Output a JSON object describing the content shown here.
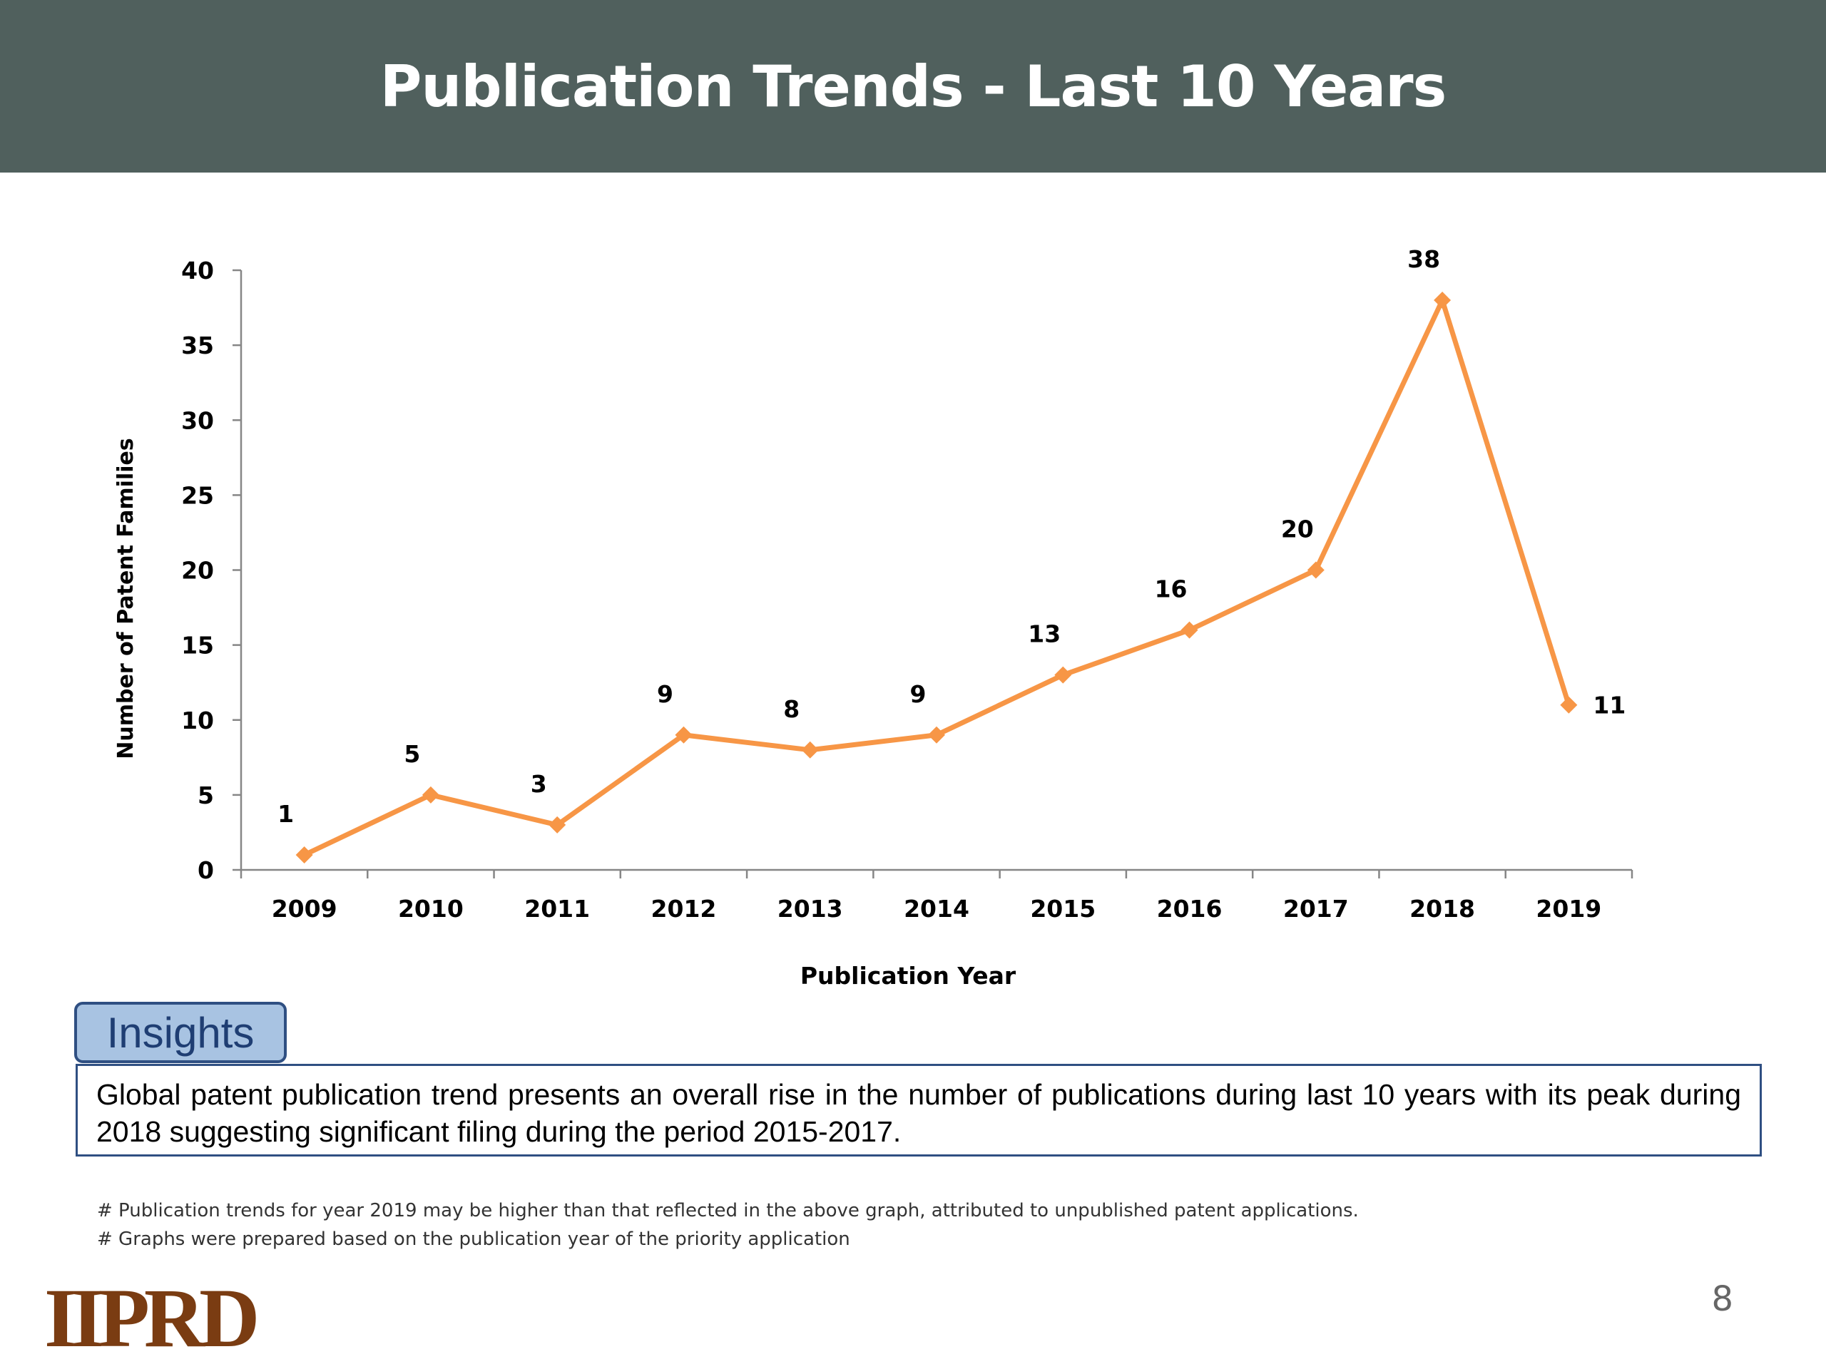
{
  "slide": {
    "title": "Publication Trends - Last 10 Years",
    "page_number": "8"
  },
  "chart_data": {
    "type": "line",
    "x": [
      "2009",
      "2010",
      "2011",
      "2012",
      "2013",
      "2014",
      "2015",
      "2016",
      "2017",
      "2018",
      "2019"
    ],
    "series": [
      {
        "values": [
          1,
          5,
          3,
          9,
          8,
          9,
          13,
          16,
          20,
          38,
          11
        ]
      }
    ],
    "xlabel": "Publication Year",
    "ylabel": "Number of Patent Families",
    "ylim": [
      0,
      40
    ],
    "yticks": [
      0,
      5,
      10,
      15,
      20,
      25,
      30,
      35,
      40
    ],
    "data_labels": true,
    "marker": "diamond",
    "grid": false,
    "line_color": "#f79646"
  },
  "insights": {
    "label": "Insights",
    "text": "Global patent publication trend presents an overall rise in the number of publications during last 10 years with its peak during 2018 suggesting significant filing during the period 2015-2017."
  },
  "footnotes": [
    "# Publication trends for year 2019 may be higher than that reflected in the above graph, attributed to unpublished patent applications.",
    "# Graphs were prepared based on the publication year of the priority application"
  ],
  "logo": {
    "text": "IIPRD"
  },
  "colors": {
    "title_bar": "#50605d",
    "insights_fill": "#a8c3e2",
    "insights_border": "#2f4f82",
    "logo": "#7a3c12"
  }
}
